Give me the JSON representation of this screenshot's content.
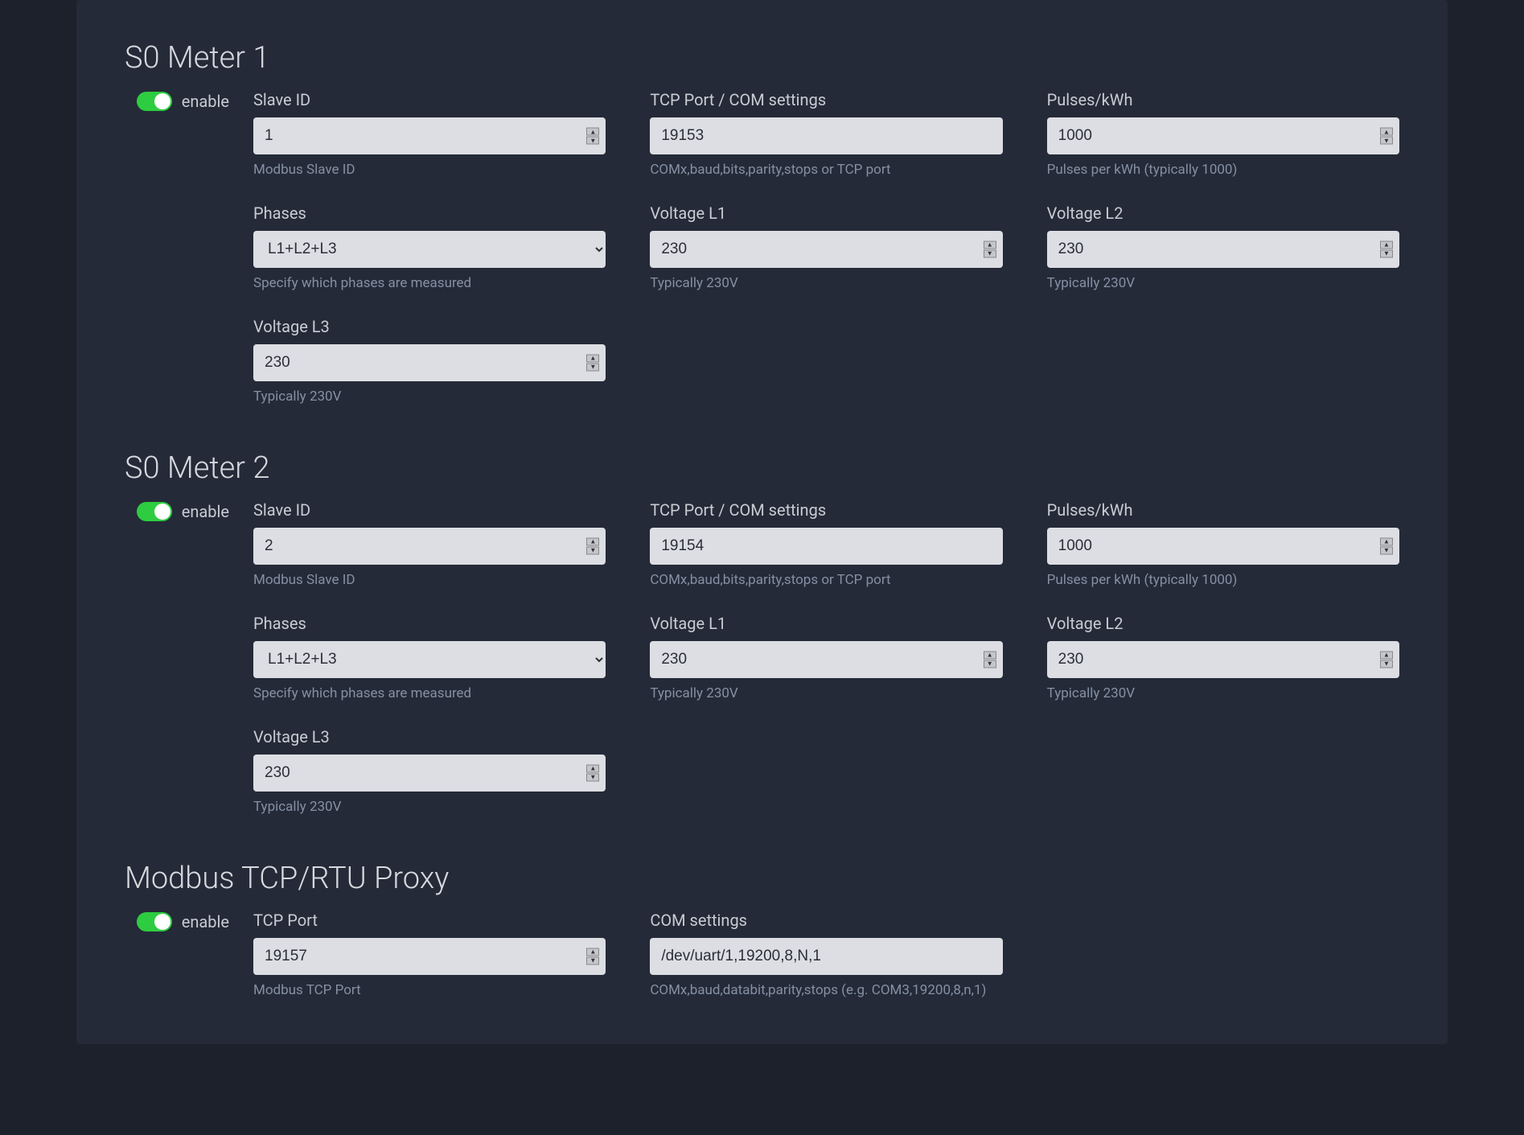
{
  "colors": {
    "page_bg": "#1c212c",
    "panel_bg": "#242a38",
    "title_color": "#d6d9de",
    "label_color": "#c8ccd2",
    "help_color": "#8590a2",
    "input_bg": "#dddee3",
    "input_text": "#2b2f36",
    "toggle_on": "#2ecc40",
    "toggle_knob": "#ffffff"
  },
  "common": {
    "enable_label": "enable"
  },
  "meter1": {
    "title": "S0 Meter 1",
    "enabled": true,
    "slave_id": {
      "label": "Slave ID",
      "value": "1",
      "help": "Modbus Slave ID"
    },
    "tcp_com": {
      "label": "TCP Port / COM settings",
      "value": "19153",
      "help": "COMx,baud,bits,parity,stops or TCP port"
    },
    "pulses": {
      "label": "Pulses/kWh",
      "value": "1000",
      "help": "Pulses per kWh (typically 1000)"
    },
    "phases": {
      "label": "Phases",
      "value": "L1+L2+L3",
      "help": "Specify which phases are measured"
    },
    "v_l1": {
      "label": "Voltage L1",
      "value": "230",
      "help": "Typically 230V"
    },
    "v_l2": {
      "label": "Voltage L2",
      "value": "230",
      "help": "Typically 230V"
    },
    "v_l3": {
      "label": "Voltage L3",
      "value": "230",
      "help": "Typically 230V"
    }
  },
  "meter2": {
    "title": "S0 Meter 2",
    "enabled": true,
    "slave_id": {
      "label": "Slave ID",
      "value": "2",
      "help": "Modbus Slave ID"
    },
    "tcp_com": {
      "label": "TCP Port / COM settings",
      "value": "19154",
      "help": "COMx,baud,bits,parity,stops or TCP port"
    },
    "pulses": {
      "label": "Pulses/kWh",
      "value": "1000",
      "help": "Pulses per kWh (typically 1000)"
    },
    "phases": {
      "label": "Phases",
      "value": "L1+L2+L3",
      "help": "Specify which phases are measured"
    },
    "v_l1": {
      "label": "Voltage L1",
      "value": "230",
      "help": "Typically 230V"
    },
    "v_l2": {
      "label": "Voltage L2",
      "value": "230",
      "help": "Typically 230V"
    },
    "v_l3": {
      "label": "Voltage L3",
      "value": "230",
      "help": "Typically 230V"
    }
  },
  "proxy": {
    "title": "Modbus TCP/RTU Proxy",
    "enabled": true,
    "tcp_port": {
      "label": "TCP Port",
      "value": "19157",
      "help": "Modbus TCP Port"
    },
    "com": {
      "label": "COM settings",
      "value": "/dev/uart/1,19200,8,N,1",
      "help": "COMx,baud,databit,parity,stops (e.g. COM3,19200,8,n,1)"
    }
  }
}
